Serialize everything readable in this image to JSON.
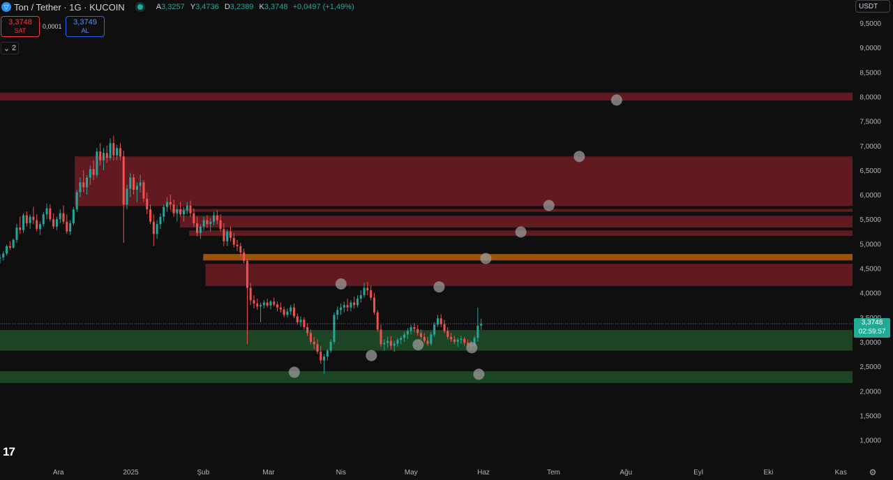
{
  "header": {
    "symbol_icon": "ton-logo-icon",
    "title": "Ton / Tether · 1G · KUCOIN",
    "ohlc": [
      {
        "k": "A",
        "v": "3,3257"
      },
      {
        "k": "Y",
        "v": "3,4736"
      },
      {
        "k": "D",
        "v": "3,2389"
      },
      {
        "k": "K",
        "v": "3,3748"
      }
    ],
    "change": "+0,0497 (+1,49%)"
  },
  "trade": {
    "sell_price": "3,3748",
    "sell_label": "SAT",
    "spread": "0,0001",
    "buy_price": "3,3749",
    "buy_label": "AL"
  },
  "collapse_count": "2",
  "currency": "USDT",
  "current_price": {
    "price": "3,3748",
    "countdown": "02:59:57"
  },
  "colors": {
    "bg": "#0f0f0f",
    "up": "#26a69a",
    "down": "#ef5350",
    "resistance": "#6b1c24",
    "support": "#1f4a28",
    "orange": "#a0580f"
  },
  "chart_data": {
    "type": "candlestick",
    "symbol": "TONUSDT",
    "y_ticks": [
      "9,5000",
      "9,0000",
      "8,5000",
      "8,0000",
      "7,5000",
      "7,0000",
      "6,5000",
      "6,0000",
      "5,5000",
      "5,0000",
      "4,5000",
      "4,0000",
      "3,5000",
      "3,0000",
      "2,5000",
      "2,0000",
      "1,5000",
      "1,0000"
    ],
    "y_values": [
      9.5,
      9.0,
      8.5,
      8.0,
      7.5,
      7.0,
      6.5,
      6.0,
      5.5,
      5.0,
      4.5,
      4.0,
      3.5,
      3.0,
      2.5,
      2.0,
      1.5,
      1.0
    ],
    "ylim": [
      0.7,
      9.7
    ],
    "x_ticks": [
      "Ara",
      "2025",
      "Şub",
      "Mar",
      "Nis",
      "May",
      "Haz",
      "Tem",
      "Ağu",
      "Eyl",
      "Eki",
      "Kas"
    ],
    "x_tick_dates": [
      "2024-12-01",
      "2025-01-01",
      "2025-02-01",
      "2025-03-01",
      "2025-04-01",
      "2025-05-01",
      "2025-06-01",
      "2025-07-01",
      "2025-08-01",
      "2025-09-01",
      "2025-10-01",
      "2025-11-01"
    ],
    "x_range_dates": [
      "2024-11-06",
      "2025-11-06"
    ],
    "zones": [
      {
        "kind": "resistance",
        "low": 7.92,
        "high": 8.08,
        "from": "2024-11-06"
      },
      {
        "kind": "resistance",
        "low": 5.77,
        "high": 6.78,
        "from": "2024-12-08"
      },
      {
        "kind": "resistance",
        "low": 5.65,
        "high": 5.71,
        "from": "2025-01-18"
      },
      {
        "kind": "resistance",
        "low": 5.33,
        "high": 5.57,
        "from": "2025-01-22"
      },
      {
        "kind": "resistance",
        "low": 5.16,
        "high": 5.27,
        "from": "2025-01-26"
      },
      {
        "kind": "orange",
        "low": 4.66,
        "high": 4.79,
        "from": "2025-02-01"
      },
      {
        "kind": "resistance",
        "low": 4.14,
        "high": 4.59,
        "from": "2025-02-02"
      },
      {
        "kind": "support",
        "low": 2.82,
        "high": 3.24,
        "from": "2024-11-06"
      },
      {
        "kind": "support",
        "low": 2.16,
        "high": 2.4,
        "from": "2024-11-06"
      }
    ],
    "markers": [
      {
        "date": "2025-03-12",
        "value": 2.38
      },
      {
        "date": "2025-04-01",
        "value": 4.18
      },
      {
        "date": "2025-04-14",
        "value": 2.72
      },
      {
        "date": "2025-05-04",
        "value": 2.94
      },
      {
        "date": "2025-05-13",
        "value": 4.12
      },
      {
        "date": "2025-05-27",
        "value": 2.88
      },
      {
        "date": "2025-05-30",
        "value": 2.34
      },
      {
        "date": "2025-06-02",
        "value": 4.7
      },
      {
        "date": "2025-06-17",
        "value": 5.24
      },
      {
        "date": "2025-06-29",
        "value": 5.78
      },
      {
        "date": "2025-07-12",
        "value": 6.78
      },
      {
        "date": "2025-07-28",
        "value": 7.93
      }
    ],
    "candles": [
      [
        4.7,
        4.78,
        4.6,
        4.72
      ],
      [
        4.72,
        4.85,
        4.66,
        4.8
      ],
      [
        4.8,
        4.98,
        4.76,
        4.95
      ],
      [
        4.95,
        5.05,
        4.88,
        4.92
      ],
      [
        4.92,
        5.1,
        4.9,
        5.08
      ],
      [
        5.08,
        5.4,
        5.02,
        5.33
      ],
      [
        5.33,
        5.55,
        5.2,
        5.28
      ],
      [
        5.28,
        5.62,
        5.22,
        5.58
      ],
      [
        5.58,
        5.66,
        5.35,
        5.42
      ],
      [
        5.42,
        5.6,
        5.3,
        5.55
      ],
      [
        5.55,
        5.75,
        5.4,
        5.48
      ],
      [
        5.48,
        5.6,
        5.25,
        5.3
      ],
      [
        5.3,
        5.45,
        5.18,
        5.4
      ],
      [
        5.4,
        5.65,
        5.35,
        5.6
      ],
      [
        5.6,
        5.82,
        5.5,
        5.72
      ],
      [
        5.72,
        5.8,
        5.45,
        5.5
      ],
      [
        5.5,
        5.62,
        5.3,
        5.35
      ],
      [
        5.35,
        5.55,
        5.28,
        5.5
      ],
      [
        5.5,
        5.7,
        5.42,
        5.62
      ],
      [
        5.62,
        5.78,
        5.4,
        5.45
      ],
      [
        5.45,
        5.6,
        5.2,
        5.25
      ],
      [
        5.25,
        5.48,
        5.18,
        5.42
      ],
      [
        5.42,
        5.75,
        5.38,
        5.7
      ],
      [
        5.7,
        6.1,
        5.65,
        6.05
      ],
      [
        6.05,
        6.35,
        5.95,
        6.25
      ],
      [
        6.25,
        6.5,
        6.05,
        6.15
      ],
      [
        6.15,
        6.4,
        6.0,
        6.35
      ],
      [
        6.35,
        6.6,
        6.2,
        6.52
      ],
      [
        6.52,
        6.7,
        6.3,
        6.4
      ],
      [
        6.4,
        6.95,
        6.35,
        6.88
      ],
      [
        6.88,
        7.05,
        6.6,
        6.7
      ],
      [
        6.7,
        6.95,
        6.5,
        6.85
      ],
      [
        6.85,
        7.0,
        6.65,
        6.75
      ],
      [
        6.75,
        7.15,
        6.7,
        7.05
      ],
      [
        7.05,
        7.2,
        6.7,
        6.8
      ],
      [
        6.8,
        7.02,
        6.7,
        6.95
      ],
      [
        6.95,
        7.05,
        6.7,
        6.78
      ],
      [
        6.78,
        6.9,
        5.02,
        5.8
      ],
      [
        5.8,
        6.2,
        5.7,
        6.12
      ],
      [
        6.12,
        6.45,
        5.95,
        6.35
      ],
      [
        6.35,
        6.42,
        6.0,
        6.1
      ],
      [
        6.1,
        6.25,
        5.85,
        6.18
      ],
      [
        6.18,
        6.4,
        6.05,
        6.25
      ],
      [
        6.25,
        6.3,
        5.85,
        5.92
      ],
      [
        5.92,
        6.05,
        5.6,
        5.7
      ],
      [
        5.7,
        5.8,
        5.4,
        5.45
      ],
      [
        5.45,
        5.6,
        4.95,
        5.2
      ],
      [
        5.2,
        5.48,
        5.1,
        5.4
      ],
      [
        5.4,
        5.62,
        5.3,
        5.55
      ],
      [
        5.55,
        5.8,
        5.45,
        5.75
      ],
      [
        5.75,
        5.95,
        5.65,
        5.85
      ],
      [
        5.85,
        6.0,
        5.7,
        5.8
      ],
      [
        5.8,
        5.9,
        5.55,
        5.62
      ],
      [
        5.62,
        5.78,
        5.45,
        5.7
      ],
      [
        5.7,
        5.85,
        5.55,
        5.6
      ],
      [
        5.6,
        5.75,
        5.45,
        5.68
      ],
      [
        5.68,
        5.85,
        5.6,
        5.78
      ],
      [
        5.78,
        5.88,
        5.55,
        5.62
      ],
      [
        5.62,
        5.72,
        5.35,
        5.42
      ],
      [
        5.42,
        5.55,
        5.15,
        5.22
      ],
      [
        5.22,
        5.4,
        5.1,
        5.35
      ],
      [
        5.35,
        5.55,
        5.28,
        5.48
      ],
      [
        5.48,
        5.58,
        5.32,
        5.4
      ],
      [
        5.4,
        5.52,
        5.25,
        5.45
      ],
      [
        5.45,
        5.65,
        5.38,
        5.58
      ],
      [
        5.58,
        5.68,
        5.4,
        5.48
      ],
      [
        5.48,
        5.6,
        5.25,
        5.3
      ],
      [
        5.3,
        5.42,
        4.95,
        5.05
      ],
      [
        5.05,
        5.3,
        4.95,
        5.25
      ],
      [
        5.25,
        5.35,
        5.05,
        5.12
      ],
      [
        5.12,
        5.22,
        4.92,
        4.98
      ],
      [
        4.98,
        5.08,
        4.85,
        4.95
      ],
      [
        4.95,
        5.02,
        4.75,
        4.82
      ],
      [
        4.82,
        4.9,
        4.6,
        4.65
      ],
      [
        4.65,
        4.7,
        2.95,
        4.1
      ],
      [
        4.1,
        4.2,
        3.75,
        3.85
      ],
      [
        3.85,
        3.95,
        3.68,
        3.78
      ],
      [
        3.78,
        3.88,
        3.65,
        3.72
      ],
      [
        3.72,
        3.8,
        3.4,
        3.75
      ],
      [
        3.75,
        3.85,
        3.68,
        3.8
      ],
      [
        3.8,
        3.88,
        3.7,
        3.74
      ],
      [
        3.74,
        3.85,
        3.66,
        3.82
      ],
      [
        3.82,
        3.9,
        3.72,
        3.76
      ],
      [
        3.76,
        3.82,
        3.62,
        3.7
      ],
      [
        3.7,
        3.8,
        3.6,
        3.66
      ],
      [
        3.66,
        3.72,
        3.5,
        3.55
      ],
      [
        3.55,
        3.68,
        3.5,
        3.62
      ],
      [
        3.62,
        3.75,
        3.55,
        3.7
      ],
      [
        3.7,
        3.78,
        3.48,
        3.52
      ],
      [
        3.52,
        3.58,
        3.35,
        3.4
      ],
      [
        3.4,
        3.52,
        3.3,
        3.45
      ],
      [
        3.45,
        3.5,
        3.25,
        3.3
      ],
      [
        3.3,
        3.38,
        3.12,
        3.18
      ],
      [
        3.18,
        3.25,
        2.95,
        3.0
      ],
      [
        3.0,
        3.1,
        2.85,
        2.95
      ],
      [
        2.95,
        3.05,
        2.75,
        2.8
      ],
      [
        2.8,
        2.92,
        2.55,
        2.62
      ],
      [
        2.62,
        2.75,
        2.35,
        2.7
      ],
      [
        2.7,
        2.85,
        2.62,
        2.82
      ],
      [
        2.82,
        3.05,
        2.78,
        3.0
      ],
      [
        3.0,
        3.6,
        2.95,
        3.55
      ],
      [
        3.55,
        3.72,
        3.45,
        3.65
      ],
      [
        3.65,
        3.78,
        3.55,
        3.7
      ],
      [
        3.7,
        3.82,
        3.6,
        3.75
      ],
      [
        3.75,
        3.88,
        3.62,
        3.7
      ],
      [
        3.7,
        3.85,
        3.62,
        3.8
      ],
      [
        3.8,
        3.92,
        3.68,
        3.75
      ],
      [
        3.75,
        3.95,
        3.7,
        3.88
      ],
      [
        3.88,
        4.05,
        3.8,
        3.95
      ],
      [
        3.95,
        4.2,
        3.9,
        4.1
      ],
      [
        4.1,
        4.22,
        3.95,
        4.05
      ],
      [
        4.05,
        4.15,
        3.85,
        3.9
      ],
      [
        3.9,
        4.0,
        3.55,
        3.6
      ],
      [
        3.6,
        3.65,
        3.2,
        3.25
      ],
      [
        3.25,
        3.35,
        2.9,
        2.95
      ],
      [
        2.95,
        3.05,
        2.82,
        2.98
      ],
      [
        2.98,
        3.1,
        2.88,
        3.02
      ],
      [
        3.02,
        3.12,
        2.85,
        2.92
      ],
      [
        2.92,
        3.02,
        2.8,
        2.96
      ],
      [
        2.96,
        3.08,
        2.9,
        3.04
      ],
      [
        3.04,
        3.12,
        2.95,
        3.08
      ],
      [
        3.08,
        3.2,
        3.0,
        3.15
      ],
      [
        3.15,
        3.28,
        3.05,
        3.22
      ],
      [
        3.22,
        3.35,
        3.15,
        3.3
      ],
      [
        3.3,
        3.38,
        3.2,
        3.26
      ],
      [
        3.26,
        3.34,
        3.12,
        3.18
      ],
      [
        3.18,
        3.25,
        3.05,
        3.1
      ],
      [
        3.1,
        3.18,
        2.98,
        3.02
      ],
      [
        3.02,
        3.1,
        2.92,
        2.96
      ],
      [
        2.96,
        3.2,
        2.92,
        3.15
      ],
      [
        3.15,
        3.4,
        3.1,
        3.35
      ],
      [
        3.35,
        3.55,
        3.3,
        3.48
      ],
      [
        3.48,
        3.56,
        3.3,
        3.36
      ],
      [
        3.36,
        3.45,
        3.18,
        3.22
      ],
      [
        3.22,
        3.3,
        3.05,
        3.1
      ],
      [
        3.1,
        3.18,
        3.0,
        3.05
      ],
      [
        3.05,
        3.12,
        2.95,
        3.0
      ],
      [
        3.0,
        3.08,
        2.9,
        3.04
      ],
      [
        3.04,
        3.12,
        2.96,
        3.06
      ],
      [
        3.06,
        3.1,
        2.92,
        2.98
      ],
      [
        2.98,
        3.05,
        2.88,
        2.95
      ],
      [
        2.95,
        3.02,
        2.85,
        2.92
      ],
      [
        2.92,
        3.12,
        2.9,
        3.08
      ],
      [
        3.08,
        3.7,
        3.0,
        3.33
      ],
      [
        3.33,
        3.47,
        3.24,
        3.37
      ]
    ]
  }
}
